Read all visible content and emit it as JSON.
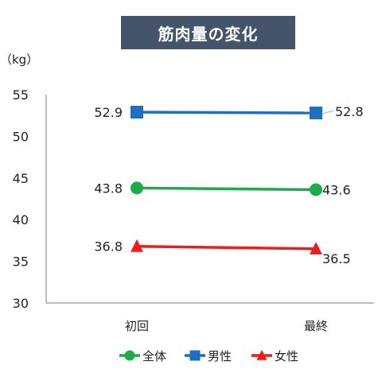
{
  "chart_data": {
    "type": "line",
    "title": "筋肉量の変化",
    "ylabel": "（kg）",
    "xlabel": "",
    "categories": [
      "初回",
      "最終"
    ],
    "ylim": [
      30,
      55
    ],
    "yticks": [
      30,
      35,
      40,
      45,
      50,
      55
    ],
    "grid": false,
    "legend_position": "bottom",
    "series": [
      {
        "name": "全体",
        "values": [
          43.8,
          43.6
        ],
        "labels": [
          "43.8",
          "43.6"
        ],
        "color": "#1faa4b",
        "marker": "circle"
      },
      {
        "name": "男性",
        "values": [
          52.9,
          52.8
        ],
        "labels": [
          "52.9",
          "52.8"
        ],
        "color": "#1f6fc0",
        "marker": "square"
      },
      {
        "name": "女性",
        "values": [
          36.8,
          36.5
        ],
        "labels": [
          "36.8",
          "36.5"
        ],
        "color": "#ee1c1c",
        "marker": "triangle"
      }
    ]
  }
}
